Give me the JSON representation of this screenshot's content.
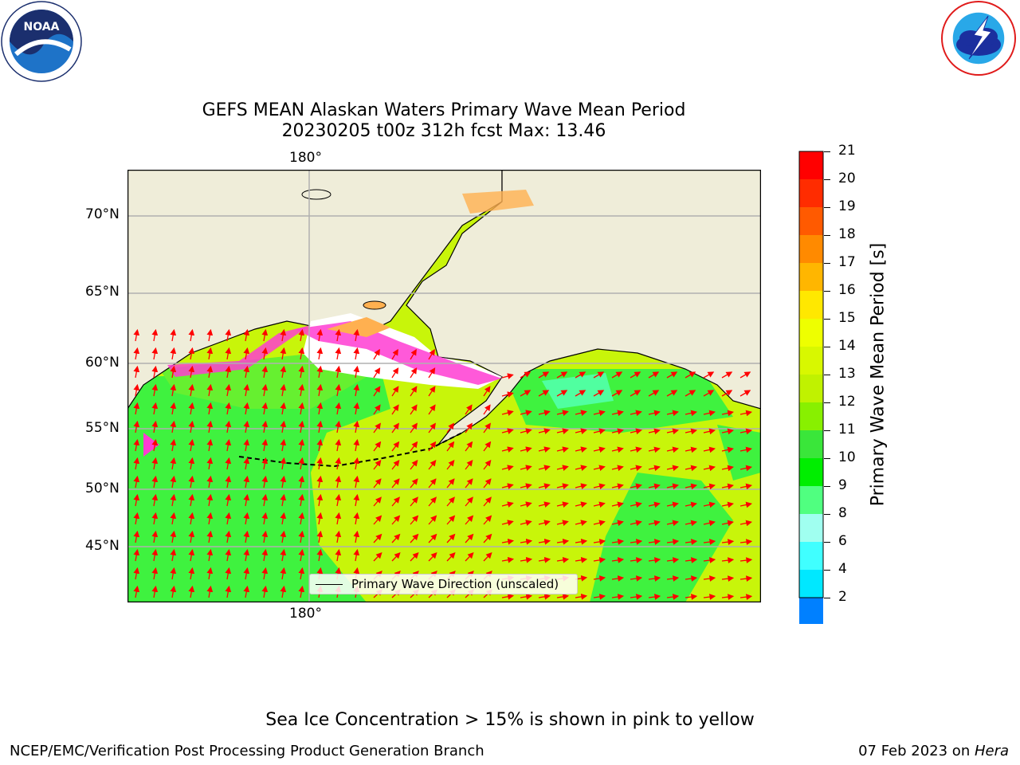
{
  "title": {
    "line1": "GEFS MEAN Alaskan Waters Primary Wave Mean Period",
    "line2": "20230205 t00z 312h fcst   Max: 13.46"
  },
  "map": {
    "lon_label": "180°",
    "lat_labels": [
      "70°N",
      "65°N",
      "60°N",
      "55°N",
      "50°N",
      "45°N"
    ],
    "legend_label": "Primary Wave Direction (unscaled)",
    "colors": {
      "land": "#efedd9",
      "ocean_green": "#3ff23f",
      "ocean_yellowgreen": "#c8f50a",
      "ocean_lime": "#99ee14",
      "ice_pink": "#ff3cd2",
      "ice_orange": "#ffb050",
      "arrow": "#ff0000",
      "grid": "#b0b0b0"
    }
  },
  "colorbar": {
    "label": "Primary Wave Mean Period [s]",
    "ticks": [
      "21",
      "20",
      "19",
      "18",
      "17",
      "16",
      "15",
      "14",
      "13",
      "12",
      "11",
      "10",
      "9",
      "8",
      "6",
      "4",
      "2"
    ],
    "colors": [
      "#ff0000",
      "#ff2c00",
      "#ff5a00",
      "#ff8a00",
      "#ffb600",
      "#ffe800",
      "#eeff00",
      "#d8f800",
      "#c0f200",
      "#88f000",
      "#3ae63a",
      "#00ee00",
      "#50ff80",
      "#a0fff0",
      "#40ffff",
      "#00e8ff",
      "#0080ff"
    ]
  },
  "logos": {
    "noaa_text": "NOAA",
    "noaa_ring_text": "NATIONAL OCEANIC AND ATMOSPHERIC ADMINISTRATION · U.S. DEPARTMENT OF COMMERCE",
    "nws_ring_text": "NATIONAL WEATHER SERVICE"
  },
  "footer": {
    "sea_ice_note": "Sea Ice Concentration > 15% is shown in pink to yellow",
    "left": "NCEP/EMC/Verification Post Processing Product Generation Branch",
    "date": "07 Feb 2023 on ",
    "machine": "Hera"
  }
}
